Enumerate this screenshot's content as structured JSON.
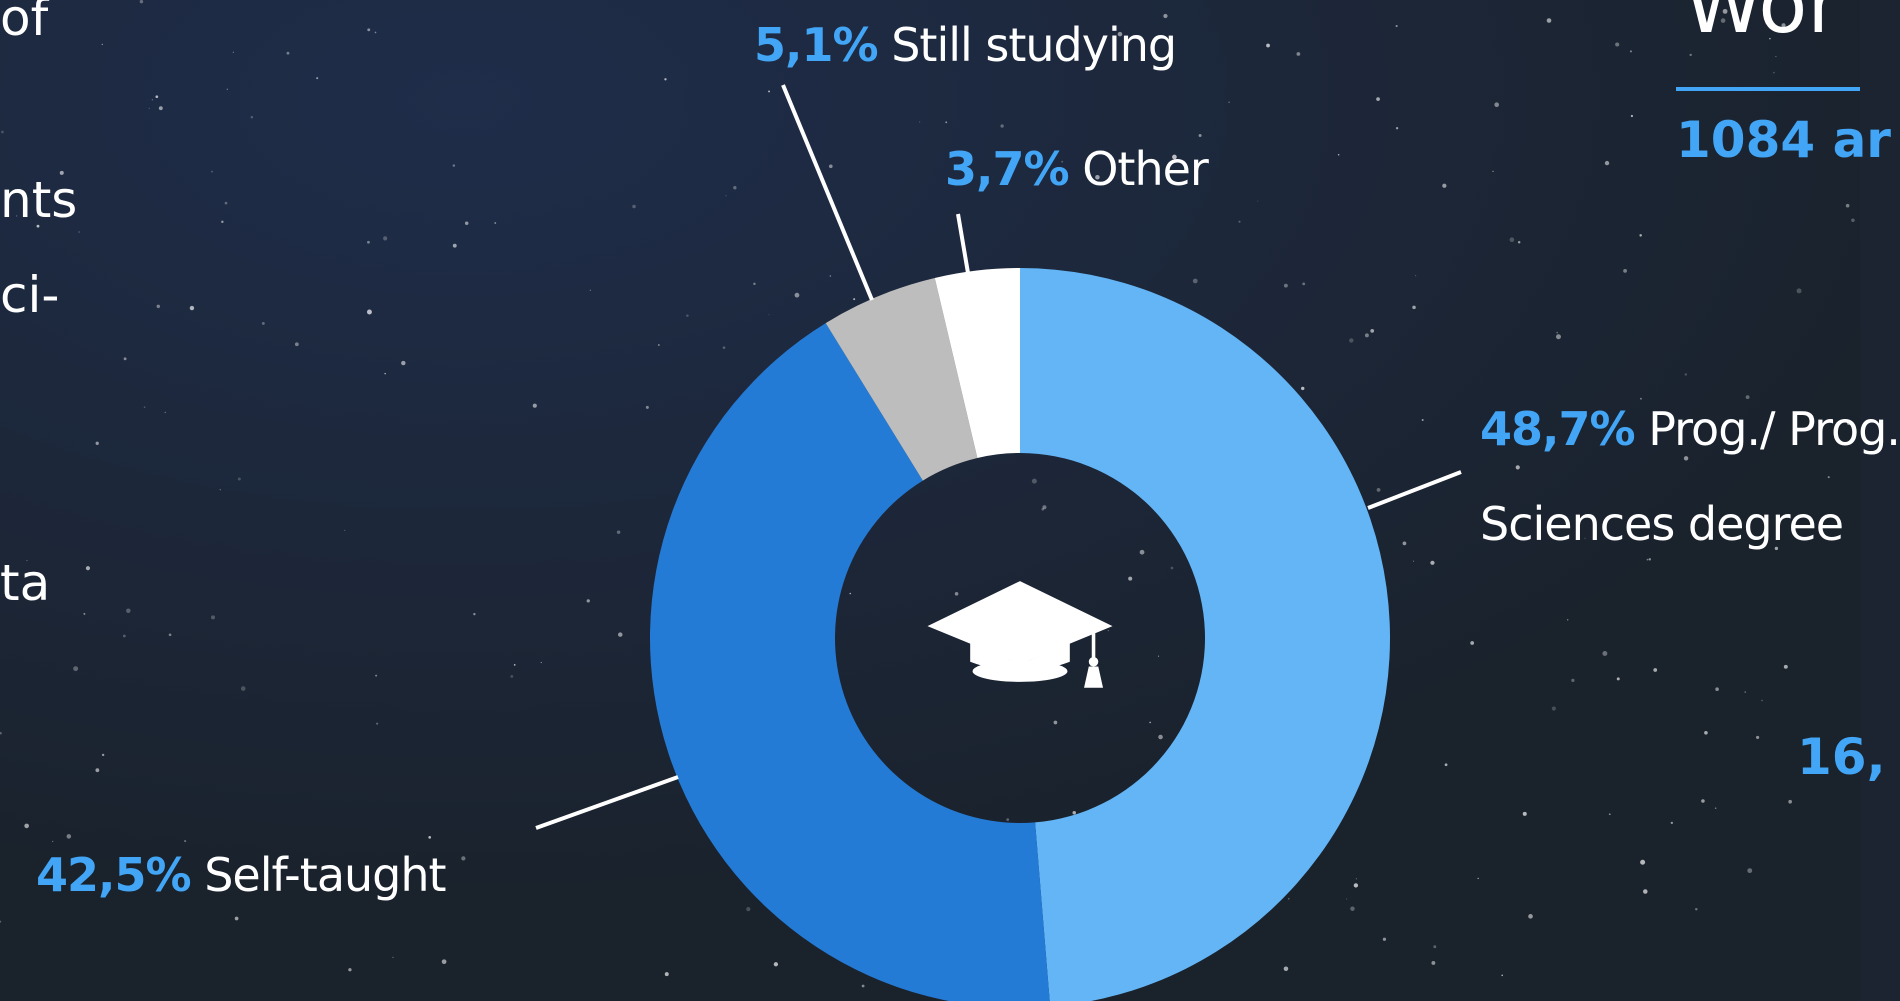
{
  "chart_data": {
    "type": "pie",
    "categories": [
      "Prog./ Prog. Sciences degree",
      "Self-taught",
      "Still studying",
      "Other"
    ],
    "values": [
      48.7,
      42.5,
      5.1,
      3.7
    ],
    "value_labels": [
      "48,7%",
      "42,5%",
      "5,1%",
      "3,7%"
    ],
    "colors": [
      "#64b5f6",
      "#247bd6",
      "#bdbdbd",
      "#ffffff"
    ]
  },
  "edge_text": {
    "left": [
      "of",
      "nts",
      "ci-",
      "ta"
    ],
    "right_heading": "Wor",
    "right_count": "1084 ar",
    "right_value": "16,"
  }
}
